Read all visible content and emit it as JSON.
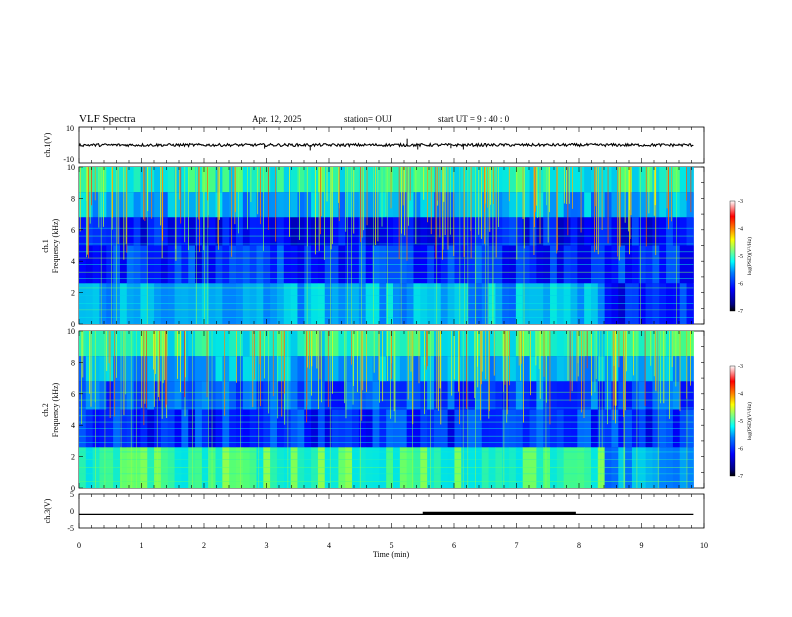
{
  "header": {
    "title": "VLF Spectra",
    "date": "Apr. 12, 2025",
    "station": "station= OUJ",
    "start": "start  UT =   9 : 40 : 0"
  },
  "chart_data": [
    {
      "panel": "ch1-waveform",
      "type": "line",
      "ylabel": "ch.1(V)",
      "ylim": [
        -10,
        10
      ],
      "ytick_labels": [
        "10",
        "-10"
      ],
      "baseline": 0,
      "xlim": [
        0,
        10
      ],
      "data_end_min": 9.83,
      "spikes": [
        {
          "x": 2.97,
          "y": -2.0
        },
        {
          "x": 3.7,
          "y": -3.0
        },
        {
          "x": 5.25,
          "y": 3.5
        },
        {
          "x": 5.42,
          "y": -2.5
        },
        {
          "x": 5.95,
          "y": -1.8
        },
        {
          "x": 6.15,
          "y": -2.5
        }
      ]
    },
    {
      "panel": "ch1-spectrogram",
      "type": "heatmap",
      "ylabel": "Frequency (kHz)",
      "channel_label": "ch.1",
      "ylim": [
        0,
        10
      ],
      "ytick_labels": [
        "0",
        "2",
        "4",
        "6",
        "8",
        "10"
      ],
      "xlim": [
        0,
        10
      ],
      "data_end_min": 9.83,
      "color_scale": {
        "label": "log(PSD)(V²/Hz)",
        "range": [
          -7,
          -3
        ],
        "tick_labels": [
          "-3",
          "-4",
          "-5",
          "-6",
          "-7"
        ],
        "colors": [
          "#000000",
          "#00007f",
          "#0000ff",
          "#0080ff",
          "#00ffff",
          "#80ff80",
          "#ffff00",
          "#ff8000",
          "#ff0000",
          "#ffffff"
        ]
      }
    },
    {
      "panel": "ch2-spectrogram",
      "type": "heatmap",
      "ylabel": "Frequency (kHz)",
      "channel_label": "ch.2",
      "ylim": [
        0,
        10
      ],
      "ytick_labels": [
        "0",
        "2",
        "4",
        "6",
        "8",
        "10"
      ],
      "xlim": [
        0,
        10
      ],
      "data_end_min": 9.83,
      "color_scale": {
        "label": "log(PSD)(V²/Hz)",
        "range": [
          -7,
          -3
        ],
        "tick_labels": [
          "-3",
          "-4",
          "-5",
          "-6",
          "-7"
        ]
      }
    },
    {
      "panel": "ch3-trace",
      "type": "line",
      "ylabel": "ch.3(V)",
      "ylim": [
        -5,
        5
      ],
      "ytick_labels": [
        "5",
        "0",
        "-5"
      ],
      "level": -1.0,
      "xlim": [
        0,
        10
      ],
      "data_end_min": 9.83,
      "bold_segment": [
        5.5,
        7.95
      ],
      "xlabel": "Time (min)",
      "xtick_labels": [
        "0",
        "1",
        "2",
        "3",
        "4",
        "5",
        "6",
        "7",
        "8",
        "9",
        "10"
      ]
    }
  ]
}
